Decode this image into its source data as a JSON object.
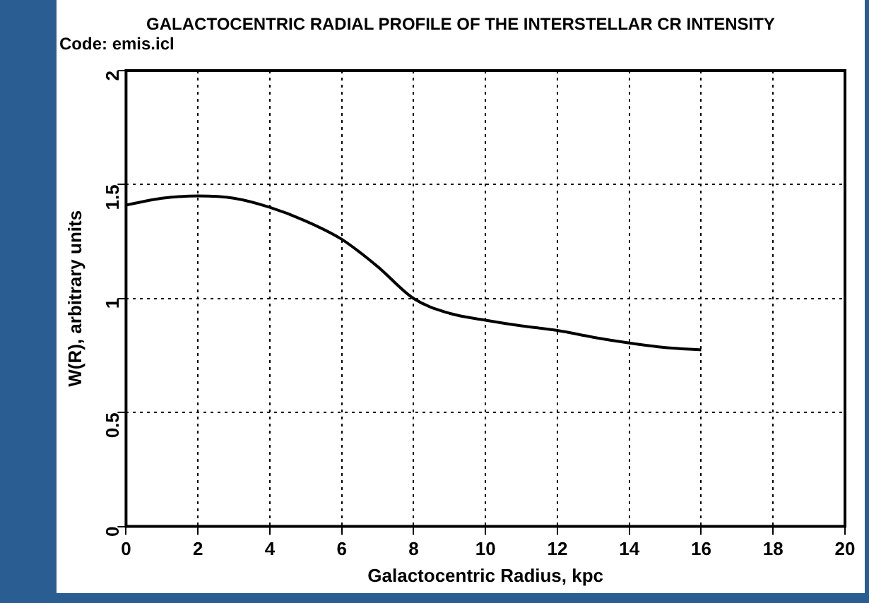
{
  "chart_data": {
    "type": "line",
    "title": "GALACTOCENTRIC RADIAL PROFILE OF THE INTERSTELLAR CR INTENSITY",
    "annotations": [
      "Code: emis.icl"
    ],
    "xlabel": "Galactocentric Radius, kpc",
    "ylabel": "W(R), arbitrary units",
    "x": [
      0,
      1,
      2,
      3,
      4,
      5,
      6,
      7,
      8,
      9,
      10,
      11,
      12,
      13,
      14,
      15,
      16
    ],
    "series": [
      {
        "color": "#000000",
        "values": [
          1.41,
          1.44,
          1.45,
          1.44,
          1.4,
          1.34,
          1.26,
          1.14,
          1.0,
          0.935,
          0.905,
          0.88,
          0.86,
          0.83,
          0.805,
          0.785,
          0.775
        ]
      }
    ],
    "xlim": [
      0,
      20
    ],
    "xticks": [
      0,
      2,
      4,
      6,
      8,
      10,
      12,
      14,
      16,
      18,
      20
    ],
    "ylim": [
      0,
      2
    ],
    "yticks": [
      0,
      0.5,
      1,
      1.5,
      2
    ],
    "grid": true,
    "legend": false,
    "marker": "none",
    "line_style": "solid"
  }
}
